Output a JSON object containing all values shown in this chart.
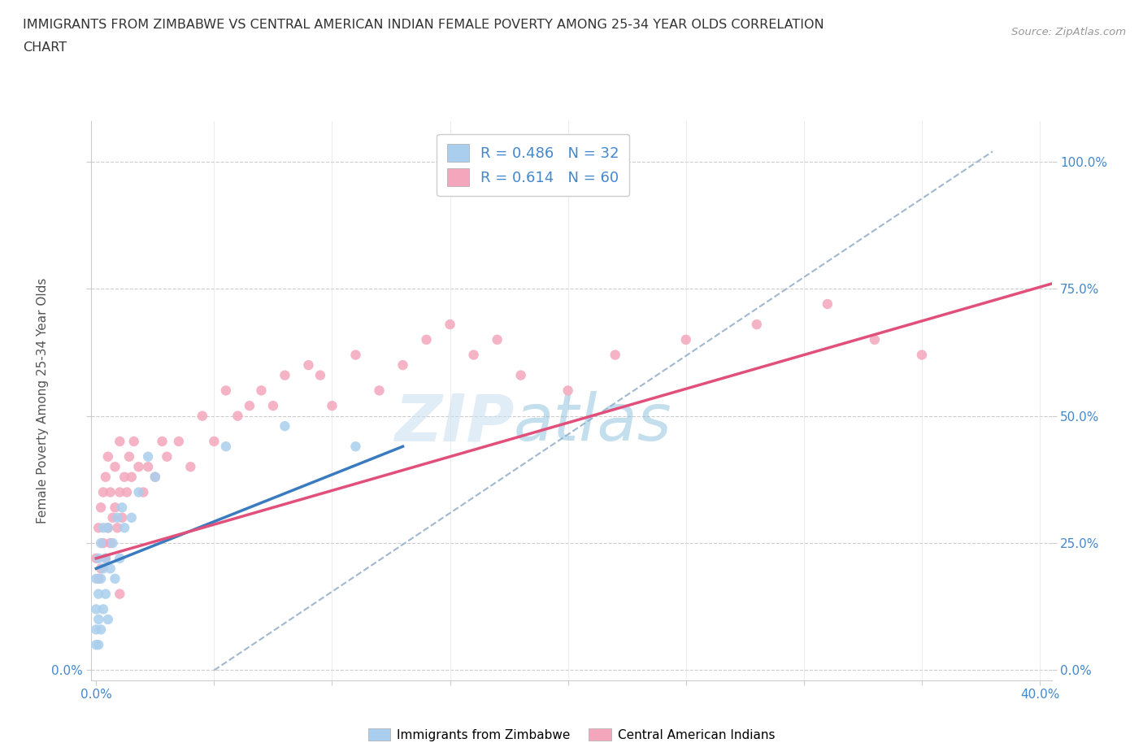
{
  "title_line1": "IMMIGRANTS FROM ZIMBABWE VS CENTRAL AMERICAN INDIAN FEMALE POVERTY AMONG 25-34 YEAR OLDS CORRELATION",
  "title_line2": "CHART",
  "source": "Source: ZipAtlas.com",
  "ylabel": "Female Poverty Among 25-34 Year Olds",
  "xlim": [
    -0.002,
    0.405
  ],
  "ylim": [
    -0.02,
    1.08
  ],
  "blue_color": "#aacfee",
  "pink_color": "#f4a6bc",
  "blue_line_color": "#3a7bbf",
  "pink_line_color": "#e0507a",
  "dashed_line_color": "#a0b8d0",
  "r_blue": 0.486,
  "n_blue": 32,
  "r_pink": 0.614,
  "n_pink": 60,
  "legend1_label": "Immigrants from Zimbabwe",
  "legend2_label": "Central American Indians",
  "watermark_zip": "ZIP",
  "watermark_atlas": "atlas",
  "blue_scatter_x": [
    0.0,
    0.0,
    0.0,
    0.0,
    0.001,
    0.001,
    0.001,
    0.001,
    0.002,
    0.002,
    0.002,
    0.003,
    0.003,
    0.003,
    0.004,
    0.004,
    0.005,
    0.005,
    0.006,
    0.007,
    0.008,
    0.009,
    0.01,
    0.011,
    0.012,
    0.015,
    0.018,
    0.022,
    0.025,
    0.055,
    0.08,
    0.11
  ],
  "blue_scatter_y": [
    0.05,
    0.08,
    0.12,
    0.18,
    0.05,
    0.1,
    0.15,
    0.22,
    0.08,
    0.18,
    0.25,
    0.12,
    0.2,
    0.28,
    0.15,
    0.22,
    0.1,
    0.28,
    0.2,
    0.25,
    0.18,
    0.3,
    0.22,
    0.32,
    0.28,
    0.3,
    0.35,
    0.42,
    0.38,
    0.44,
    0.48,
    0.44
  ],
  "pink_scatter_x": [
    0.0,
    0.001,
    0.001,
    0.002,
    0.002,
    0.003,
    0.003,
    0.004,
    0.004,
    0.005,
    0.005,
    0.006,
    0.006,
    0.007,
    0.008,
    0.008,
    0.009,
    0.01,
    0.01,
    0.011,
    0.012,
    0.013,
    0.014,
    0.015,
    0.016,
    0.018,
    0.02,
    0.022,
    0.025,
    0.028,
    0.03,
    0.035,
    0.04,
    0.045,
    0.05,
    0.055,
    0.06,
    0.065,
    0.07,
    0.075,
    0.08,
    0.09,
    0.095,
    0.1,
    0.11,
    0.12,
    0.13,
    0.14,
    0.15,
    0.16,
    0.17,
    0.18,
    0.2,
    0.22,
    0.25,
    0.28,
    0.31,
    0.33,
    0.35,
    0.01
  ],
  "pink_scatter_y": [
    0.22,
    0.18,
    0.28,
    0.2,
    0.32,
    0.25,
    0.35,
    0.22,
    0.38,
    0.28,
    0.42,
    0.25,
    0.35,
    0.3,
    0.32,
    0.4,
    0.28,
    0.35,
    0.45,
    0.3,
    0.38,
    0.35,
    0.42,
    0.38,
    0.45,
    0.4,
    0.35,
    0.4,
    0.38,
    0.45,
    0.42,
    0.45,
    0.4,
    0.5,
    0.45,
    0.55,
    0.5,
    0.52,
    0.55,
    0.52,
    0.58,
    0.6,
    0.58,
    0.52,
    0.62,
    0.55,
    0.6,
    0.65,
    0.68,
    0.62,
    0.65,
    0.58,
    0.55,
    0.62,
    0.65,
    0.68,
    0.72,
    0.65,
    0.62,
    0.15
  ],
  "pink_line_x0": 0.0,
  "pink_line_y0": 0.22,
  "pink_line_x1": 0.405,
  "pink_line_y1": 0.76,
  "blue_line_x0": 0.0,
  "blue_line_y0": 0.2,
  "blue_line_x1": 0.13,
  "blue_line_y1": 0.44,
  "dash_line_x0": 0.05,
  "dash_line_y0": 0.0,
  "dash_line_x1": 0.38,
  "dash_line_y1": 1.02
}
